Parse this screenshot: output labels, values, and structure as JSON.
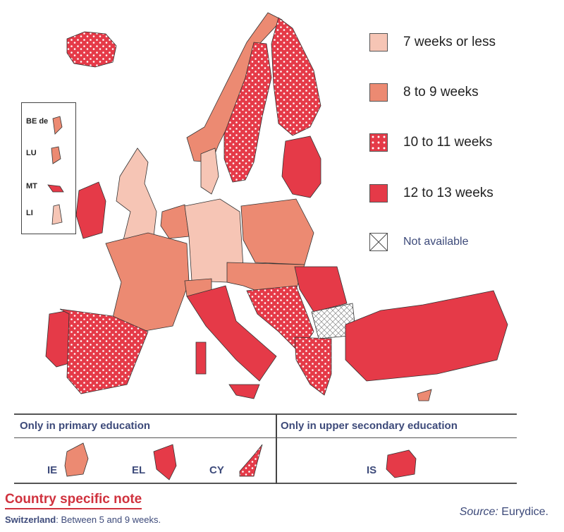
{
  "colors": {
    "le7": "#f6c5b5",
    "w8_9": "#ec8a72",
    "w10_11": "#e53a48",
    "w12_13": "#e53a48",
    "not_available": "#ffffff",
    "text_blue": "#3d4a7a",
    "note_red": "#d0323e"
  },
  "legend": [
    {
      "label": "7 weeks or less",
      "fill": "light"
    },
    {
      "label": "8 to 9 weeks",
      "fill": "medium"
    },
    {
      "label": "10 to 11 weeks",
      "fill": "dotted"
    },
    {
      "label": "12 to 13 weeks",
      "fill": "red"
    },
    {
      "label": "Not available",
      "fill": "hatched"
    }
  ],
  "inset_labels": [
    "BE de",
    "LU",
    "MT",
    "LI"
  ],
  "table": {
    "primary_header": "Only in primary education",
    "upper_secondary_header": "Only in upper secondary education",
    "primary_countries": [
      "IE",
      "EL",
      "CY"
    ],
    "upper_secondary_countries": [
      "IS"
    ]
  },
  "note": {
    "title": "Country specific note",
    "country": "Switzerland",
    "text": ": Between 5 and 9 weeks."
  },
  "source": {
    "label": "Source:",
    "value": " Eurydice."
  }
}
